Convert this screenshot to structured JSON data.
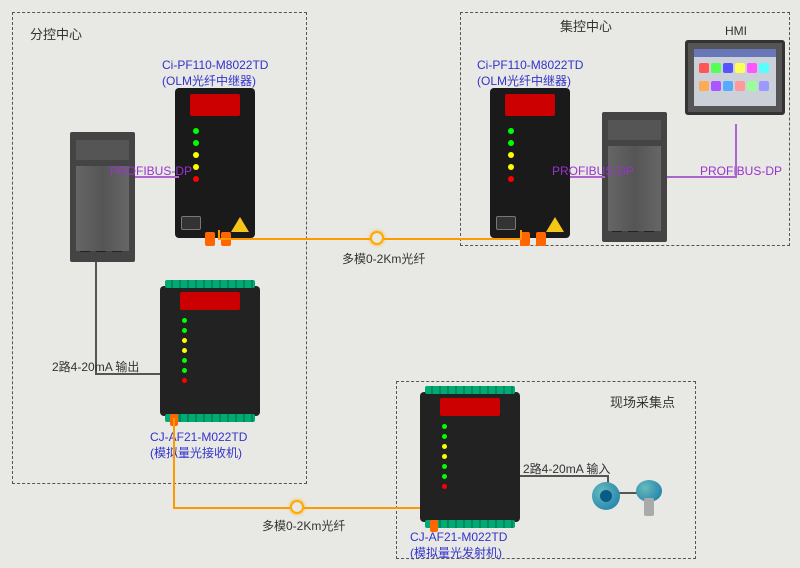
{
  "regions": {
    "left": {
      "title": "分控中心"
    },
    "right": {
      "title": "集控中心"
    },
    "site": {
      "title": "现场采集点"
    }
  },
  "devices": {
    "olm_left": {
      "model": "Ci-PF110-M8022TD",
      "desc": "(OLM光纤中继器)"
    },
    "olm_right": {
      "model": "Ci-PF110-M8022TD",
      "desc": "(OLM光纤中继器)"
    },
    "af21_rx": {
      "model": "CJ-AF21-M022TD",
      "desc": "(模拟量光接收机)"
    },
    "af21_tx": {
      "model": "CJ-AF21-M022TD",
      "desc": "(模拟量光发射机)"
    },
    "hmi": {
      "label": "HMI"
    }
  },
  "labels": {
    "profibus": "PROFIBUS-DP",
    "fiber_2km": "多模0-2Km光纤",
    "analog_out": "2路4-20mA 输出",
    "analog_in": "2路4-20mA 输入"
  },
  "hmi_icons": [
    "#f55",
    "#5f5",
    "#55f",
    "#ff5",
    "#f5f",
    "#5ff",
    "#fa5",
    "#a5f",
    "#5af",
    "#f99",
    "#9f9",
    "#99f"
  ]
}
